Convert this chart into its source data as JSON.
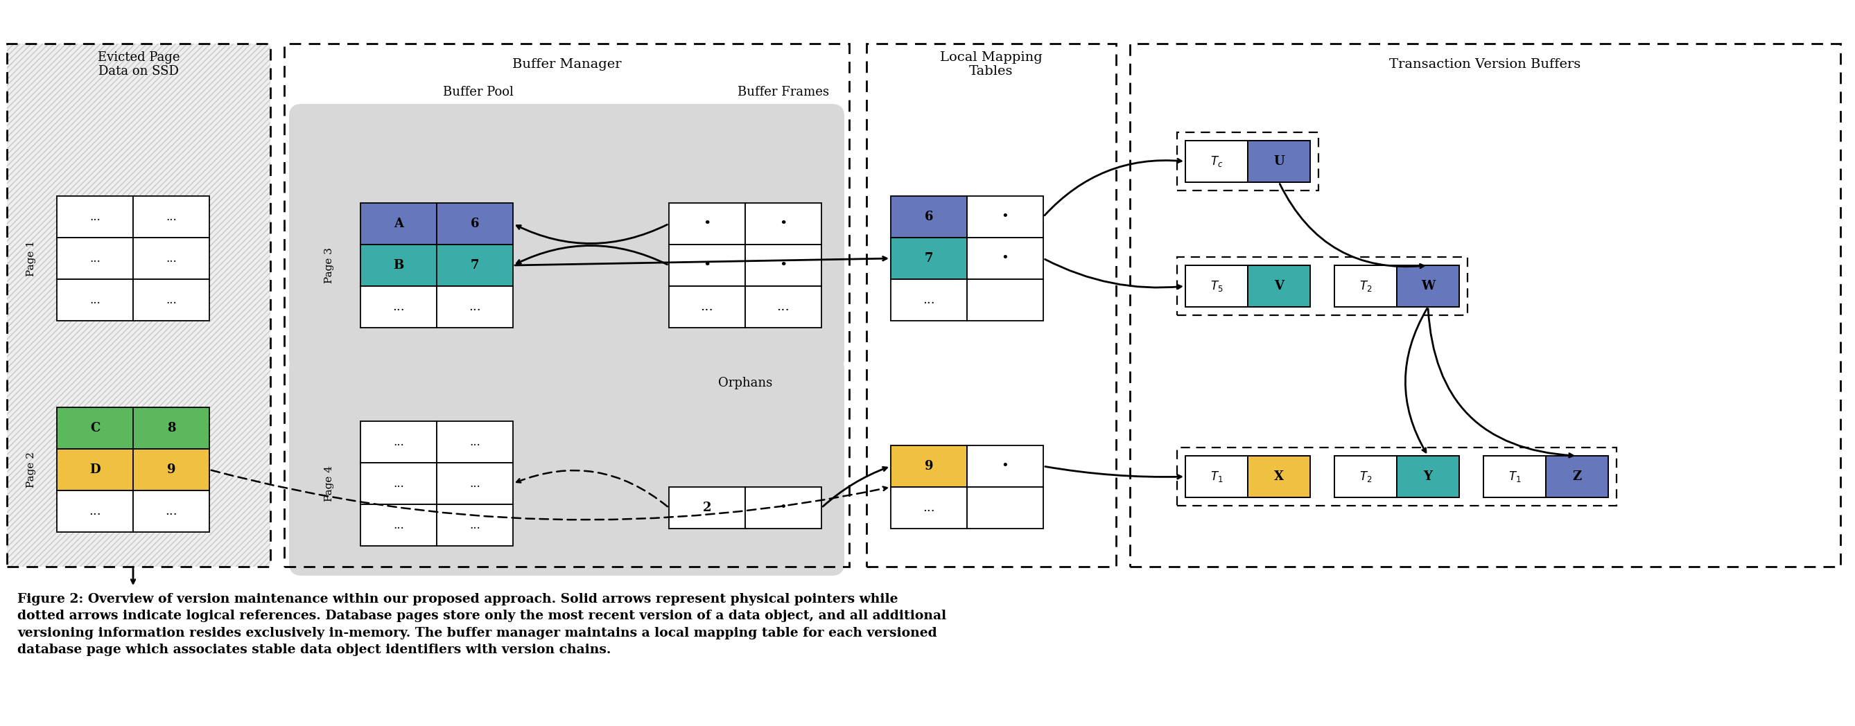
{
  "bg": "#ffffff",
  "caption_bold": "Figure 2: ",
  "caption_rest": "Overview of version maintenance within our proposed approach. Solid arrows represent physical pointers while\ndotted arrows indicate logical references. Database pages store only the most recent version of a data object, and all additional\nversioning information resides exclusively in-memory. The buffer manager maintains a local mapping table for each versioned\ndatabase page which associates stable data object identifiers with version chains.",
  "c_blue": "#6677bb",
  "c_teal": "#3aada8",
  "c_green": "#5cb85c",
  "c_yellow": "#f0c040",
  "c_gray": "#d8d8d8",
  "c_white": "#ffffff",
  "c_black": "#000000",
  "lbl_ssd": "Evicted Page\nData on SSD",
  "lbl_bm": "Buffer Manager",
  "lbl_bp": "Buffer Pool",
  "lbl_bf": "Buffer Frames",
  "lbl_orph": "Orphans",
  "lbl_lmt": "Local Mapping\nTables",
  "lbl_tvb": "Transaction Version Buffers",
  "lbl_page1": "Page 1",
  "lbl_page2": "Page 2",
  "lbl_page3": "Page 3",
  "lbl_page4": "Page 4"
}
